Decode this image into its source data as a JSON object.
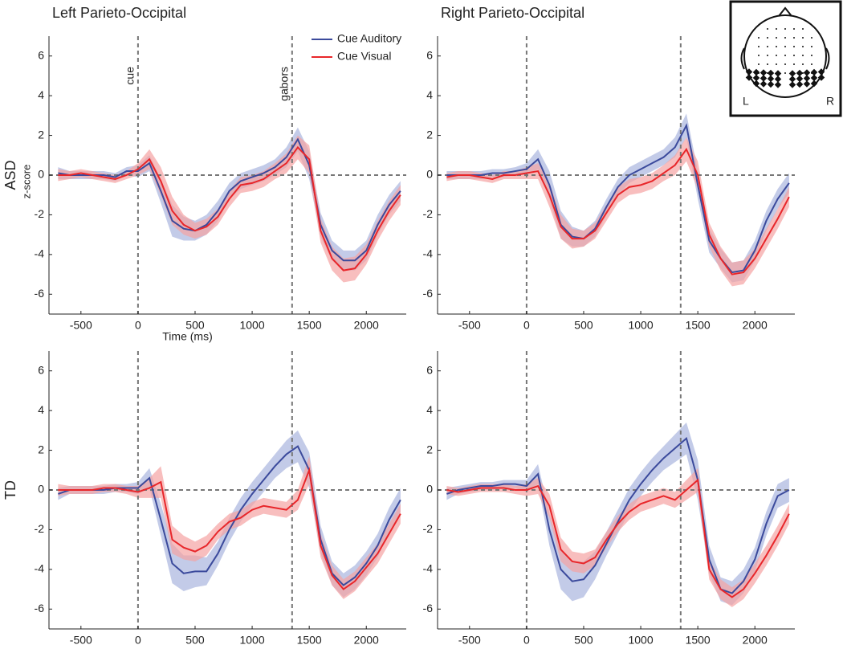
{
  "chart_data": [
    {
      "type": "line",
      "title": "Left Parieto-Occipital",
      "row_label": "ASD",
      "xlabel": "Time (ms)",
      "ylabel": "z-score",
      "legend": true,
      "x": [
        -700,
        -600,
        -500,
        -400,
        -300,
        -200,
        -100,
        0,
        100,
        200,
        300,
        400,
        500,
        600,
        700,
        800,
        900,
        1000,
        1100,
        1200,
        1300,
        1400,
        1500,
        1600,
        1700,
        1800,
        1900,
        2000,
        2100,
        2200,
        2300
      ],
      "xlim": [
        -780,
        2350
      ],
      "ylim": [
        -7,
        7
      ],
      "xticks": [
        -500,
        0,
        500,
        1000,
        1500,
        2000
      ],
      "yticks": [
        -6,
        -4,
        -2,
        0,
        2,
        4,
        6
      ],
      "vlines": [
        0,
        1350
      ],
      "vline_labels": [
        "cue",
        "gabors"
      ],
      "hlines": [
        0
      ],
      "series": [
        {
          "name": "Cue Auditory",
          "color": "#3b4a9c",
          "band_color": "#a9b5de",
          "values": [
            0.1,
            0,
            0,
            0,
            0,
            -0.1,
            0.2,
            0.2,
            0.6,
            -0.8,
            -2.3,
            -2.7,
            -2.8,
            -2.5,
            -1.8,
            -0.8,
            -0.3,
            -0.1,
            0.1,
            0.4,
            0.9,
            1.8,
            0.5,
            -2.5,
            -3.8,
            -4.3,
            -4.3,
            -3.8,
            -2.5,
            -1.5,
            -0.8
          ],
          "errors": [
            0.3,
            0.2,
            0.2,
            0.2,
            0.2,
            0.2,
            0.2,
            0.3,
            0.4,
            0.6,
            0.8,
            0.6,
            0.5,
            0.5,
            0.5,
            0.4,
            0.4,
            0.4,
            0.4,
            0.4,
            0.5,
            0.6,
            0.7,
            0.6,
            0.5,
            0.5,
            0.5,
            0.5,
            0.5,
            0.5,
            0.5
          ]
        },
        {
          "name": "Cue Visual",
          "color": "#e8262a",
          "band_color": "#f5a3a3",
          "values": [
            0,
            0,
            0.1,
            0,
            -0.1,
            -0.2,
            0,
            0.3,
            0.8,
            -0.3,
            -1.8,
            -2.5,
            -2.8,
            -2.6,
            -2.1,
            -1.2,
            -0.5,
            -0.4,
            -0.2,
            0.2,
            0.6,
            1.4,
            0.8,
            -2.8,
            -4.2,
            -4.8,
            -4.7,
            -4,
            -2.8,
            -1.8,
            -1
          ],
          "errors": [
            0.3,
            0.2,
            0.2,
            0.2,
            0.2,
            0.2,
            0.2,
            0.3,
            0.5,
            0.7,
            0.7,
            0.5,
            0.4,
            0.4,
            0.4,
            0.4,
            0.4,
            0.4,
            0.4,
            0.4,
            0.5,
            0.6,
            0.7,
            0.6,
            0.6,
            0.6,
            0.6,
            0.5,
            0.5,
            0.5,
            0.5
          ]
        }
      ]
    },
    {
      "type": "line",
      "title": "Right Parieto-Occipital",
      "x": [
        -700,
        -600,
        -500,
        -400,
        -300,
        -200,
        -100,
        0,
        100,
        200,
        300,
        400,
        500,
        600,
        700,
        800,
        900,
        1000,
        1100,
        1200,
        1300,
        1400,
        1500,
        1600,
        1700,
        1800,
        1900,
        2000,
        2100,
        2200,
        2300
      ],
      "xlim": [
        -780,
        2350
      ],
      "ylim": [
        -7,
        7
      ],
      "xticks": [
        -500,
        0,
        500,
        1000,
        1500,
        2000
      ],
      "yticks": [
        -6,
        -4,
        -2,
        0,
        2,
        4,
        6
      ],
      "vlines": [
        0,
        1350
      ],
      "hlines": [
        0
      ],
      "series": [
        {
          "color": "#3b4a9c",
          "band_color": "#a9b5de",
          "values": [
            0,
            0,
            0,
            0,
            0.1,
            0.1,
            0.2,
            0.3,
            0.8,
            -0.5,
            -2.5,
            -3.1,
            -3.2,
            -2.7,
            -1.6,
            -0.6,
            0,
            0.3,
            0.6,
            0.9,
            1.4,
            2.5,
            -0.5,
            -3.3,
            -4.2,
            -4.9,
            -4.8,
            -3.8,
            -2.3,
            -1.2,
            -0.4
          ],
          "errors": [
            0.2,
            0.2,
            0.2,
            0.2,
            0.2,
            0.2,
            0.2,
            0.3,
            0.5,
            0.7,
            0.7,
            0.5,
            0.4,
            0.4,
            0.4,
            0.4,
            0.4,
            0.4,
            0.4,
            0.4,
            0.5,
            0.6,
            0.7,
            0.6,
            0.5,
            0.5,
            0.5,
            0.5,
            0.5,
            0.5,
            0.5
          ]
        },
        {
          "color": "#e8262a",
          "band_color": "#f5a3a3",
          "values": [
            -0.1,
            0,
            0,
            -0.1,
            -0.2,
            0,
            0,
            0.1,
            0.2,
            -1,
            -2.6,
            -3.2,
            -3.2,
            -2.8,
            -1.9,
            -1,
            -0.6,
            -0.5,
            -0.3,
            0.1,
            0.5,
            1.3,
            0,
            -3,
            -4.2,
            -5,
            -4.9,
            -4.2,
            -3.2,
            -2.2,
            -1.1
          ],
          "errors": [
            0.2,
            0.2,
            0.2,
            0.2,
            0.2,
            0.2,
            0.2,
            0.3,
            0.4,
            0.6,
            0.6,
            0.5,
            0.4,
            0.4,
            0.4,
            0.4,
            0.4,
            0.4,
            0.4,
            0.4,
            0.5,
            0.6,
            0.7,
            0.6,
            0.6,
            0.6,
            0.6,
            0.5,
            0.5,
            0.5,
            0.5
          ]
        }
      ]
    },
    {
      "type": "line",
      "row_label": "TD",
      "x": [
        -700,
        -600,
        -500,
        -400,
        -300,
        -200,
        -100,
        0,
        100,
        200,
        300,
        400,
        500,
        600,
        700,
        800,
        900,
        1000,
        1100,
        1200,
        1300,
        1400,
        1500,
        1600,
        1700,
        1800,
        1900,
        2000,
        2100,
        2200,
        2300
      ],
      "xlim": [
        -780,
        2350
      ],
      "ylim": [
        -7,
        7
      ],
      "xticks": [
        -500,
        0,
        500,
        1000,
        1500,
        2000
      ],
      "yticks": [
        -6,
        -4,
        -2,
        0,
        2,
        4,
        6
      ],
      "vlines": [
        0,
        1350
      ],
      "hlines": [
        0
      ],
      "series": [
        {
          "color": "#3b4a9c",
          "band_color": "#a9b5de",
          "values": [
            -0.2,
            0,
            0,
            0,
            0,
            0.1,
            0.1,
            0.1,
            0.6,
            -1.5,
            -3.7,
            -4.2,
            -4.1,
            -4.1,
            -3.2,
            -2,
            -1,
            -0.2,
            0.5,
            1.2,
            1.8,
            2.2,
            1,
            -2.5,
            -4.2,
            -4.8,
            -4.4,
            -3.7,
            -2.8,
            -1.5,
            -0.5
          ],
          "errors": [
            0.3,
            0.2,
            0.2,
            0.2,
            0.2,
            0.2,
            0.2,
            0.3,
            0.5,
            0.8,
            1,
            0.9,
            0.8,
            0.7,
            0.6,
            0.6,
            0.6,
            0.6,
            0.6,
            0.6,
            0.7,
            0.8,
            0.9,
            0.7,
            0.6,
            0.6,
            0.6,
            0.6,
            0.6,
            0.6,
            0.6
          ]
        },
        {
          "color": "#e8262a",
          "band_color": "#f5a3a3",
          "values": [
            0,
            0,
            0,
            0,
            0.1,
            0.1,
            0,
            -0.1,
            0.1,
            0.4,
            -2.5,
            -2.9,
            -3.1,
            -2.8,
            -2.1,
            -1.6,
            -1.4,
            -1,
            -0.8,
            -0.9,
            -1,
            -0.5,
            1,
            -2.8,
            -4.3,
            -5,
            -4.6,
            -3.9,
            -3.2,
            -2.2,
            -1.2
          ],
          "errors": [
            0.3,
            0.2,
            0.2,
            0.2,
            0.2,
            0.2,
            0.2,
            0.3,
            0.5,
            0.8,
            0.7,
            0.6,
            0.5,
            0.5,
            0.4,
            0.4,
            0.4,
            0.4,
            0.4,
            0.4,
            0.4,
            0.5,
            0.7,
            0.6,
            0.5,
            0.5,
            0.5,
            0.5,
            0.5,
            0.5,
            0.5
          ]
        }
      ]
    },
    {
      "type": "line",
      "x": [
        -700,
        -600,
        -500,
        -400,
        -300,
        -200,
        -100,
        0,
        100,
        200,
        300,
        400,
        500,
        600,
        700,
        800,
        900,
        1000,
        1100,
        1200,
        1300,
        1400,
        1500,
        1600,
        1700,
        1800,
        1900,
        2000,
        2100,
        2200,
        2300
      ],
      "xlim": [
        -780,
        2350
      ],
      "ylim": [
        -7,
        7
      ],
      "xticks": [
        -500,
        0,
        500,
        1000,
        1500,
        2000
      ],
      "yticks": [
        -6,
        -4,
        -2,
        0,
        2,
        4,
        6
      ],
      "vlines": [
        0,
        1350
      ],
      "hlines": [
        0
      ],
      "series": [
        {
          "color": "#3b4a9c",
          "band_color": "#a9b5de",
          "values": [
            -0.2,
            0,
            0.1,
            0.2,
            0.2,
            0.3,
            0.3,
            0.2,
            0.8,
            -2,
            -4,
            -4.6,
            -4.5,
            -3.8,
            -2.7,
            -1.6,
            -0.5,
            0.3,
            1,
            1.6,
            2.1,
            2.6,
            0.5,
            -3.5,
            -5,
            -5.2,
            -4.6,
            -3.5,
            -1.7,
            -0.3,
            0
          ],
          "errors": [
            0.3,
            0.2,
            0.2,
            0.2,
            0.2,
            0.2,
            0.2,
            0.3,
            0.5,
            0.8,
            1,
            1,
            0.9,
            0.7,
            0.6,
            0.6,
            0.6,
            0.6,
            0.6,
            0.6,
            0.7,
            0.8,
            1,
            0.7,
            0.6,
            0.6,
            0.6,
            0.6,
            0.6,
            0.6,
            0.6
          ]
        },
        {
          "color": "#e8262a",
          "band_color": "#f5a3a3",
          "values": [
            0,
            -0.1,
            0,
            0.1,
            0.1,
            0.1,
            0,
            0,
            0.2,
            -0.8,
            -3,
            -3.6,
            -3.7,
            -3.4,
            -2.5,
            -1.7,
            -1.1,
            -0.7,
            -0.5,
            -0.3,
            -0.5,
            0,
            0.5,
            -4,
            -5,
            -5.4,
            -5,
            -4.2,
            -3.3,
            -2.3,
            -1.2
          ],
          "errors": [
            0.2,
            0.2,
            0.2,
            0.2,
            0.2,
            0.2,
            0.2,
            0.3,
            0.4,
            0.6,
            0.6,
            0.5,
            0.5,
            0.4,
            0.4,
            0.4,
            0.4,
            0.4,
            0.4,
            0.4,
            0.4,
            0.5,
            0.6,
            0.5,
            0.5,
            0.5,
            0.5,
            0.5,
            0.5,
            0.5,
            0.5
          ]
        }
      ]
    }
  ],
  "inset": {
    "left": "L",
    "right": "R"
  }
}
